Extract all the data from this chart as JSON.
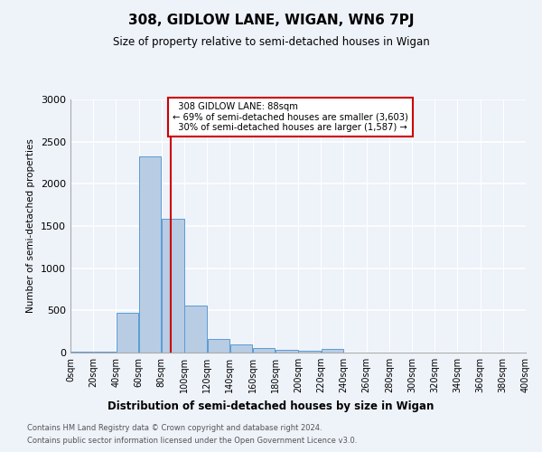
{
  "title": "308, GIDLOW LANE, WIGAN, WN6 7PJ",
  "subtitle": "Size of property relative to semi-detached houses in Wigan",
  "xlabel": "Distribution of semi-detached houses by size in Wigan",
  "ylabel": "Number of semi-detached properties",
  "bar_edges": [
    0,
    20,
    40,
    60,
    80,
    100,
    120,
    140,
    160,
    180,
    200,
    220,
    240,
    260,
    280,
    300,
    320,
    340,
    360,
    380,
    400
  ],
  "bar_heights": [
    10,
    10,
    470,
    2320,
    1590,
    560,
    160,
    95,
    55,
    35,
    25,
    45,
    5,
    0,
    0,
    0,
    0,
    0,
    0,
    0
  ],
  "bar_color": "#b8cce4",
  "bar_edge_color": "#5b9bd5",
  "property_size": 88,
  "property_label": "308 GIDLOW LANE: 88sqm",
  "pct_smaller": 69,
  "n_smaller": 3603,
  "pct_larger": 30,
  "n_larger": 1587,
  "vline_color": "#cc0000",
  "annotation_box_color": "#cc0000",
  "ylim": [
    0,
    3000
  ],
  "yticks": [
    0,
    500,
    1000,
    1500,
    2000,
    2500,
    3000
  ],
  "footnote1": "Contains HM Land Registry data © Crown copyright and database right 2024.",
  "footnote2": "Contains public sector information licensed under the Open Government Licence v3.0.",
  "bg_color": "#eef2f9",
  "plot_bg_color": "#eef2f9"
}
